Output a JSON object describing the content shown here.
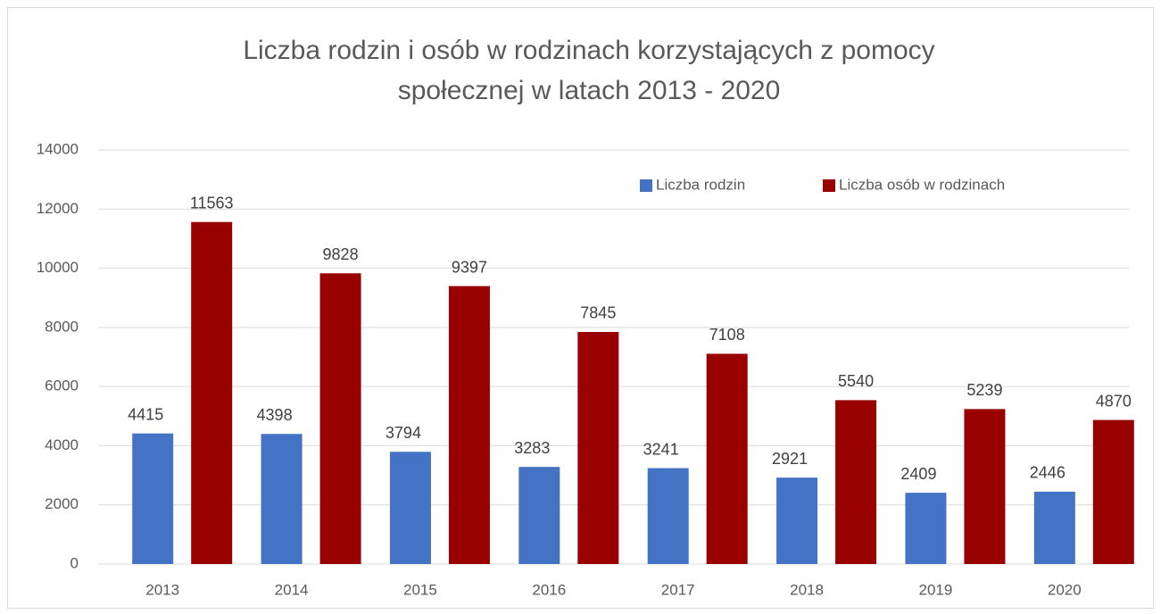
{
  "chart_data": {
    "type": "bar",
    "title": [
      "Liczba rodzin i osób w rodzinach korzystających z pomocy",
      "społecznej w latach 2013 - 2020"
    ],
    "categories": [
      "2013",
      "2014",
      "2015",
      "2016",
      "2017",
      "2018",
      "2019",
      "2020"
    ],
    "series": [
      {
        "name": "Liczba rodzin",
        "color": "#4472c4",
        "values": [
          4415,
          4398,
          3794,
          3283,
          3241,
          2921,
          2409,
          2446
        ]
      },
      {
        "name": "Liczba osób w rodzinach",
        "color": "#990000",
        "values": [
          11563,
          9828,
          9397,
          7845,
          7108,
          5540,
          5239,
          4870
        ]
      }
    ],
    "ylim": [
      0,
      14000
    ],
    "yticks": [
      0,
      2000,
      4000,
      6000,
      8000,
      10000,
      12000,
      14000
    ],
    "grid": true,
    "legend": "top-right"
  }
}
